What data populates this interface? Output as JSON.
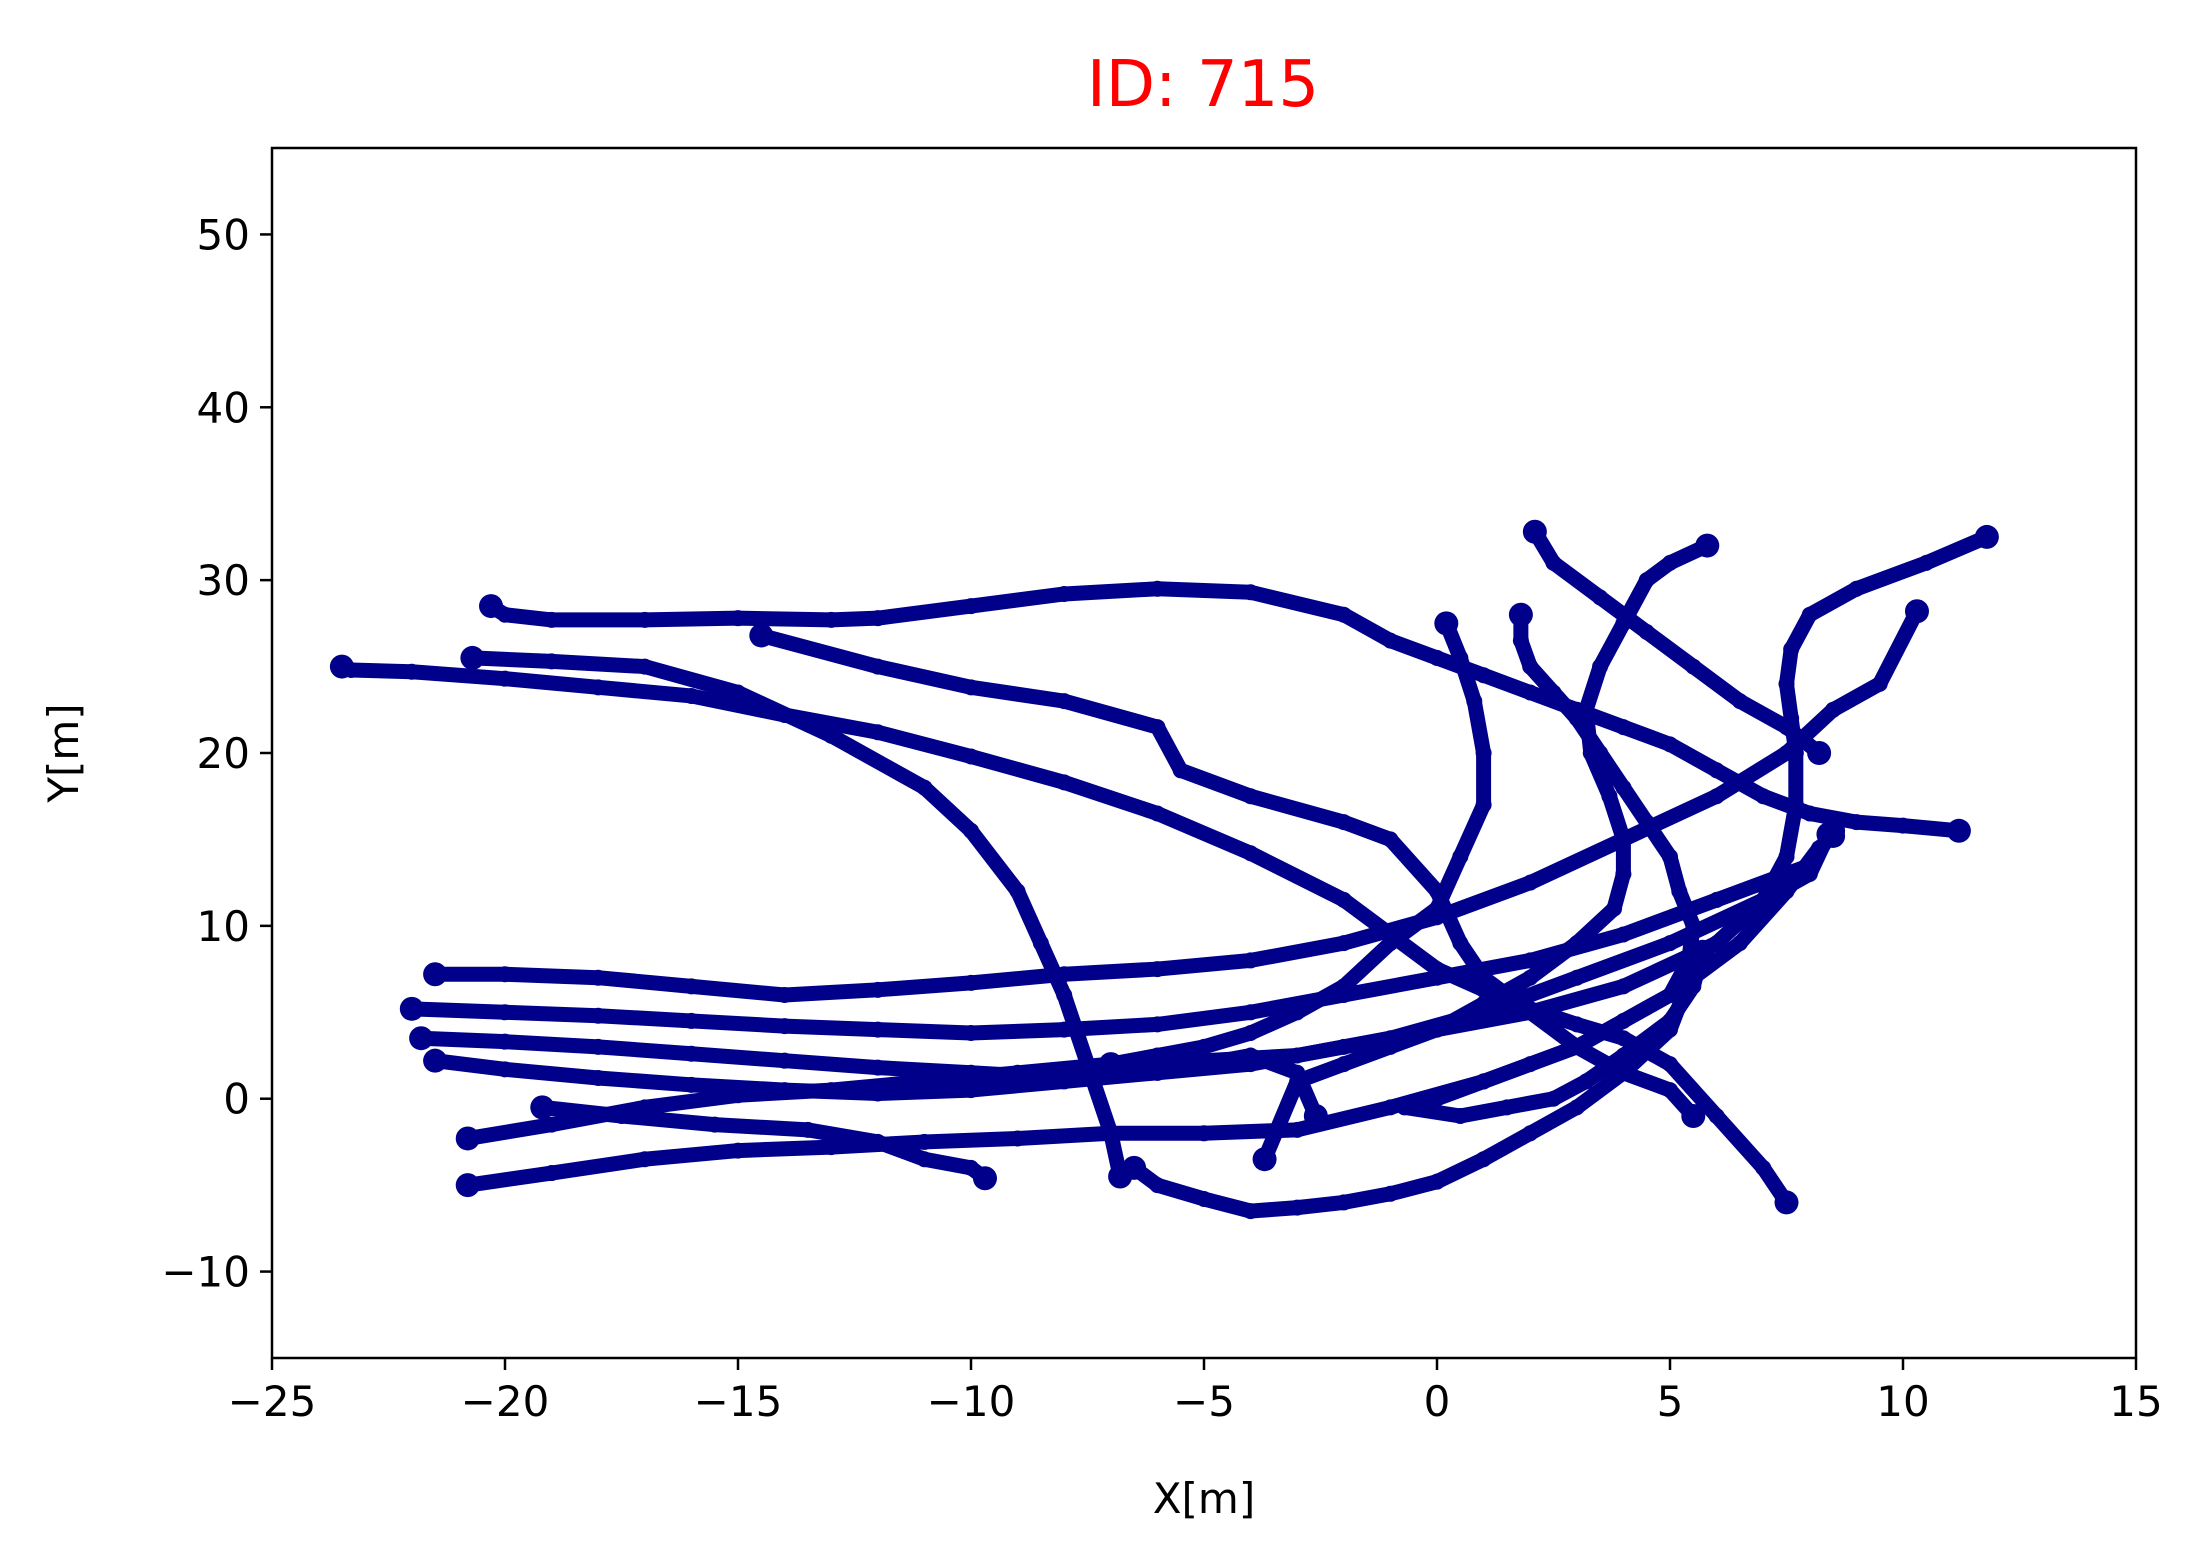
{
  "chart_data": {
    "type": "scatter",
    "title": "ID: 715",
    "title_color": "#ff0000",
    "xlabel": "X[m]",
    "ylabel": "Y[m]",
    "xlim": [
      -25,
      15
    ],
    "ylim": [
      -15,
      55
    ],
    "xticks": [
      -25,
      -20,
      -15,
      -10,
      -5,
      0,
      5,
      10,
      15
    ],
    "yticks": [
      -10,
      0,
      10,
      20,
      30,
      40,
      50
    ],
    "xtick_labels": [
      "−25",
      "−20",
      "−15",
      "−10",
      "−5",
      "0",
      "5",
      "10",
      "15"
    ],
    "ytick_labels": [
      "−10",
      "0",
      "10",
      "20",
      "30",
      "40",
      "50"
    ],
    "grid": false,
    "legend": "none",
    "series_color": "#00008b",
    "series": [
      {
        "points": [
          [
            -20.3,
            28.5
          ],
          [
            -20,
            28
          ],
          [
            -19,
            27.7
          ],
          [
            -17,
            27.7
          ],
          [
            -15,
            27.8
          ],
          [
            -13,
            27.7
          ],
          [
            -12,
            27.8
          ],
          [
            -10,
            28.5
          ],
          [
            -8,
            29.2
          ],
          [
            -6,
            29.5
          ],
          [
            -4,
            29.3
          ],
          [
            -2,
            28
          ],
          [
            -1,
            26.5
          ],
          [
            0,
            25.5
          ],
          [
            1,
            24.5
          ],
          [
            2,
            23.5
          ],
          [
            3,
            22.5
          ],
          [
            4,
            21.5
          ],
          [
            5,
            20.5
          ],
          [
            6,
            19
          ],
          [
            7,
            17.5
          ],
          [
            8,
            16.5
          ],
          [
            9,
            16
          ],
          [
            10,
            15.8
          ],
          [
            11.2,
            15.5
          ]
        ]
      },
      {
        "points": [
          [
            -23.5,
            25
          ],
          [
            -23.3,
            24.8
          ],
          [
            -22,
            24.7
          ],
          [
            -20,
            24.3
          ],
          [
            -18,
            23.8
          ],
          [
            -16,
            23.3
          ],
          [
            -14,
            22.2
          ],
          [
            -12,
            21.2
          ],
          [
            -10,
            19.8
          ],
          [
            -8,
            18.3
          ],
          [
            -6,
            16.5
          ],
          [
            -4,
            14.2
          ],
          [
            -2,
            11.5
          ],
          [
            -1,
            9.5
          ],
          [
            0,
            7.5
          ],
          [
            1,
            6.3
          ],
          [
            2,
            5.2
          ],
          [
            3,
            4.3
          ],
          [
            4,
            3.5
          ],
          [
            5,
            2
          ],
          [
            6,
            -1
          ],
          [
            7,
            -4
          ],
          [
            7.5,
            -6
          ]
        ]
      },
      {
        "points": [
          [
            -20.7,
            25.5
          ],
          [
            -19,
            25.3
          ],
          [
            -17,
            25
          ],
          [
            -15,
            23.5
          ],
          [
            -13,
            21
          ],
          [
            -11,
            18
          ],
          [
            -10,
            15.5
          ],
          [
            -9,
            12
          ],
          [
            -8.5,
            9
          ],
          [
            -8,
            6
          ],
          [
            -7.5,
            2
          ],
          [
            -7,
            -2
          ],
          [
            -6.8,
            -4.5
          ]
        ]
      },
      {
        "points": [
          [
            -14.5,
            26.8
          ],
          [
            -12,
            25
          ],
          [
            -10,
            23.8
          ],
          [
            -8,
            23
          ],
          [
            -6,
            21.5
          ],
          [
            -5.5,
            19
          ],
          [
            -4,
            17.5
          ],
          [
            -2,
            16
          ],
          [
            -1,
            15
          ],
          [
            0,
            12
          ],
          [
            0.5,
            9
          ],
          [
            1,
            7
          ],
          [
            2,
            5
          ],
          [
            3,
            3
          ],
          [
            4,
            1.5
          ],
          [
            5,
            0.5
          ],
          [
            5.5,
            -1
          ]
        ]
      },
      {
        "points": [
          [
            0.2,
            27.5
          ],
          [
            0.5,
            25.5
          ],
          [
            0.8,
            23
          ],
          [
            1,
            20
          ],
          [
            1,
            17
          ],
          [
            0.5,
            14
          ],
          [
            0,
            11
          ],
          [
            -1,
            9
          ],
          [
            -2,
            6.5
          ],
          [
            -3,
            5
          ],
          [
            -4,
            3.8
          ],
          [
            -5,
            3
          ],
          [
            -6,
            2.5
          ],
          [
            -7,
            2
          ]
        ]
      },
      {
        "points": [
          [
            -21.5,
            7.2
          ],
          [
            -20,
            7.2
          ],
          [
            -18,
            7
          ],
          [
            -16,
            6.5
          ],
          [
            -14,
            6
          ],
          [
            -12,
            6.3
          ],
          [
            -10,
            6.7
          ],
          [
            -8,
            7.2
          ],
          [
            -6,
            7.5
          ],
          [
            -4,
            8
          ],
          [
            -2,
            9
          ],
          [
            0,
            10.5
          ],
          [
            2,
            12.5
          ],
          [
            4,
            15
          ],
          [
            6,
            17.5
          ],
          [
            7.5,
            20
          ],
          [
            8.5,
            22.5
          ],
          [
            9.5,
            24
          ],
          [
            10.3,
            28.2
          ]
        ]
      },
      {
        "points": [
          [
            -22,
            5.2
          ],
          [
            -20,
            5
          ],
          [
            -18,
            4.8
          ],
          [
            -16,
            4.5
          ],
          [
            -14,
            4.2
          ],
          [
            -12,
            4
          ],
          [
            -10,
            3.8
          ],
          [
            -8,
            4
          ],
          [
            -6,
            4.3
          ],
          [
            -4,
            5
          ],
          [
            -2,
            6
          ],
          [
            0,
            7
          ],
          [
            2,
            8
          ],
          [
            4,
            9.5
          ],
          [
            6,
            11.5
          ],
          [
            8,
            13.5
          ],
          [
            8.5,
            15.5
          ]
        ]
      },
      {
        "points": [
          [
            -21.8,
            3.5
          ],
          [
            -20,
            3.3
          ],
          [
            -18,
            3
          ],
          [
            -16,
            2.6
          ],
          [
            -14,
            2.2
          ],
          [
            -12,
            1.8
          ],
          [
            -10,
            1.5
          ],
          [
            -8,
            1.2
          ],
          [
            -6,
            1.5
          ],
          [
            -4,
            2
          ],
          [
            -2,
            3
          ],
          [
            0,
            4
          ],
          [
            2,
            5
          ],
          [
            4,
            6.5
          ],
          [
            6,
            9
          ],
          [
            7,
            11.5
          ],
          [
            7.5,
            14
          ],
          [
            7.7,
            17
          ],
          [
            7.7,
            20
          ],
          [
            7.6,
            22
          ],
          [
            7.5,
            24
          ],
          [
            7.6,
            26
          ],
          [
            8,
            28
          ],
          [
            9,
            29.5
          ],
          [
            10.5,
            31
          ],
          [
            11.8,
            32.5
          ]
        ]
      },
      {
        "points": [
          [
            -21.5,
            2.2
          ],
          [
            -20,
            1.7
          ],
          [
            -18,
            1.2
          ],
          [
            -16,
            0.8
          ],
          [
            -14,
            0.5
          ],
          [
            -12,
            0.3
          ],
          [
            -10,
            0.5
          ],
          [
            -8,
            1
          ],
          [
            -6,
            1.5
          ],
          [
            -5,
            2
          ],
          [
            -4,
            2.5
          ],
          [
            -3,
            1.5
          ],
          [
            -2.6,
            -1
          ]
        ]
      },
      {
        "points": [
          [
            -20.8,
            -2.3
          ],
          [
            -19,
            -1.5
          ],
          [
            -17,
            -0.5
          ],
          [
            -15,
            0.2
          ],
          [
            -13,
            0.5
          ],
          [
            -11,
            1
          ],
          [
            -9,
            1.5
          ],
          [
            -7,
            2
          ],
          [
            -5,
            2.2
          ],
          [
            -3,
            2.5
          ],
          [
            -1,
            3.5
          ],
          [
            1,
            5
          ],
          [
            3,
            7
          ],
          [
            5,
            9
          ],
          [
            7,
            11.5
          ],
          [
            8,
            13
          ],
          [
            8.4,
            15.3
          ]
        ]
      },
      {
        "points": [
          [
            -20.8,
            -5
          ],
          [
            -19,
            -4.3
          ],
          [
            -17,
            -3.5
          ],
          [
            -15,
            -3
          ],
          [
            -13,
            -2.8
          ],
          [
            -11,
            -2.5
          ],
          [
            -9,
            -2.3
          ],
          [
            -7,
            -2
          ],
          [
            -5,
            -2
          ],
          [
            -3,
            -1.8
          ],
          [
            -1,
            -0.5
          ],
          [
            1,
            1
          ],
          [
            3,
            3
          ],
          [
            5,
            6
          ],
          [
            6.5,
            9
          ],
          [
            7.5,
            12
          ],
          [
            8.2,
            14.5
          ],
          [
            8.5,
            15.2
          ]
        ]
      },
      {
        "points": [
          [
            -19.2,
            -0.5
          ],
          [
            -17.5,
            -1
          ],
          [
            -15.5,
            -1.5
          ],
          [
            -13.5,
            -1.8
          ],
          [
            -12,
            -2.5
          ],
          [
            -11,
            -3.5
          ],
          [
            -10,
            -4
          ],
          [
            -9.7,
            -4.6
          ]
        ]
      },
      {
        "points": [
          [
            2.1,
            32.8
          ],
          [
            2.5,
            31
          ],
          [
            3.5,
            29
          ],
          [
            4.5,
            27
          ],
          [
            5.5,
            25
          ],
          [
            6.5,
            23
          ],
          [
            7.5,
            21.5
          ],
          [
            8.2,
            20
          ]
        ]
      },
      {
        "points": [
          [
            5.8,
            32
          ],
          [
            5,
            31
          ],
          [
            4.5,
            30
          ],
          [
            4,
            27.5
          ],
          [
            3.5,
            25
          ],
          [
            3.2,
            22.5
          ],
          [
            3.3,
            20
          ],
          [
            3.7,
            17.5
          ],
          [
            4,
            15
          ],
          [
            4,
            13
          ],
          [
            3.8,
            11
          ],
          [
            3,
            9
          ],
          [
            2,
            7
          ],
          [
            1,
            5.5
          ],
          [
            0,
            4
          ],
          [
            -1,
            3
          ],
          [
            -2,
            2
          ],
          [
            -3,
            1
          ],
          [
            -3.7,
            -3.5
          ]
        ]
      },
      {
        "points": [
          [
            1.8,
            28
          ],
          [
            1.8,
            26.5
          ],
          [
            2,
            25
          ],
          [
            2.5,
            23.5
          ],
          [
            3,
            22
          ],
          [
            3.5,
            20
          ],
          [
            4,
            18
          ],
          [
            4.5,
            16
          ],
          [
            5,
            14
          ],
          [
            5.2,
            12
          ],
          [
            5.5,
            10
          ],
          [
            5.4,
            8
          ],
          [
            5,
            6
          ],
          [
            4,
            4.5
          ],
          [
            3,
            3
          ],
          [
            2,
            2
          ],
          [
            1,
            1
          ],
          [
            0,
            0
          ],
          [
            -0.7,
            -0.5
          ],
          [
            0.5,
            -1
          ],
          [
            1.5,
            -0.5
          ],
          [
            2.5,
            0
          ],
          [
            3.2,
            1
          ],
          [
            4,
            2.5
          ],
          [
            5,
            4.5
          ],
          [
            5.5,
            6.5
          ],
          [
            5.7,
            8.5
          ]
        ]
      },
      {
        "points": [
          [
            -6.5,
            -4
          ],
          [
            -6,
            -5
          ],
          [
            -5,
            -5.8
          ],
          [
            -4,
            -6.5
          ],
          [
            -3,
            -6.3
          ],
          [
            -2,
            -6
          ],
          [
            -1,
            -5.5
          ],
          [
            0,
            -4.8
          ],
          [
            1,
            -3.5
          ],
          [
            2,
            -2
          ],
          [
            3,
            -0.5
          ],
          [
            4,
            1.5
          ],
          [
            5,
            4
          ],
          [
            5.5,
            7.5
          ]
        ]
      }
    ]
  }
}
